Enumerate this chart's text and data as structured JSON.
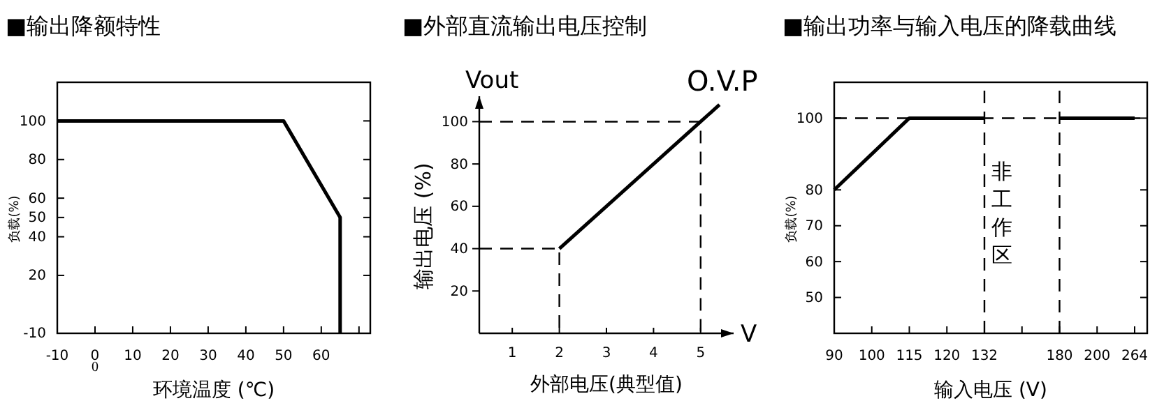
{
  "chart_data": [
    {
      "type": "line",
      "title": "■输出降额特性",
      "xlabel": "环境温度 (℃)",
      "ylabel": "负载(%)",
      "xlim": [
        -10,
        73
      ],
      "xticks": [
        -10,
        0,
        10,
        20,
        30,
        40,
        50,
        60,
        {
          "value": 70,
          "label": null
        }
      ],
      "ylim": [
        -10,
        120
      ],
      "yticks": [
        -10,
        20,
        40,
        50,
        60,
        80,
        100
      ],
      "x": [
        -10,
        50,
        65,
        65
      ],
      "series": [
        {
          "color": "#000000",
          "values": [
            100,
            100,
            50,
            -10
          ]
        }
      ],
      "annotations": [
        "0"
      ]
    },
    {
      "type": "line",
      "title": "■外部直流输出电压控制",
      "xlabel": "外部电压(典型值)",
      "ylabel": "输出电压 (%)",
      "xlim": [
        0.3,
        5.7
      ],
      "xticks": [
        1,
        2,
        3,
        4,
        5
      ],
      "ylim": [
        0,
        112
      ],
      "yticks": [
        20,
        40,
        60,
        80,
        100
      ],
      "series": [
        {
          "x": [
            2,
            5,
            5.4
          ],
          "values": [
            40,
            100,
            108
          ],
          "color": "#000000"
        },
        {
          "x": [
            0.3,
            2,
            2
          ],
          "values": [
            40,
            40,
            0
          ],
          "color": "#000000",
          "line_style": "dashed"
        },
        {
          "x": [
            0.3,
            5,
            5
          ],
          "values": [
            100,
            100,
            0
          ],
          "color": "#000000",
          "line_style": "dashed"
        }
      ],
      "annotations": [
        "Vout",
        "V",
        {
          "text": "O.V.P",
          "x": 5.4,
          "y": 108
        }
      ]
    },
    {
      "type": "line",
      "title": "■输出功率与输入电压的降载曲线",
      "xlabel": "输入电压 (V)",
      "ylabel": "负载(%)",
      "categories": [
        "90",
        "100",
        "115",
        "120",
        "132",
        null,
        "180",
        "200",
        "264"
      ],
      "ylim": [
        40,
        110
      ],
      "yticks": [
        50,
        60,
        70,
        80,
        100
      ],
      "series": [
        {
          "color": "#000000",
          "values": [
            80,
            90,
            100,
            100,
            100,
            null,
            100,
            100,
            100
          ]
        }
      ],
      "ref_lines": [
        {
          "axis": "x",
          "value": "132",
          "line_style": "dashed"
        },
        {
          "axis": "x",
          "value": "180",
          "line_style": "dashed"
        },
        {
          "axis": "y",
          "value": 100,
          "line_style": "dashed"
        }
      ],
      "annotations": [
        "非工作区"
      ]
    }
  ]
}
